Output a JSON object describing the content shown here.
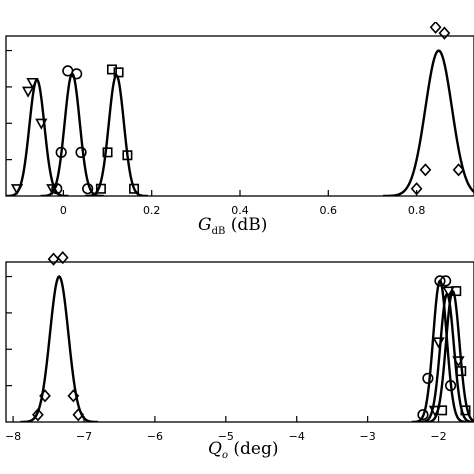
{
  "chart_data": [
    {
      "type": "line",
      "xlabel_main": "G",
      "xlabel_sub": "dB",
      "xlabel_unit": " (dB)",
      "xlim": [
        -0.13,
        0.93
      ],
      "ylim": [
        0,
        1.1
      ],
      "xticks": [
        {
          "value": 0,
          "label": "0"
        },
        {
          "value": 0.2,
          "label": "0.2"
        },
        {
          "value": 0.4,
          "label": "0.4"
        },
        {
          "value": 0.6,
          "label": "0.6"
        },
        {
          "value": 0.8,
          "label": "0.8"
        }
      ],
      "yticks": [
        0.25,
        0.5,
        0.75,
        1.0
      ],
      "series": [
        {
          "marker": "triangle-down",
          "mu": -0.06,
          "sigma": 0.017,
          "amp": 0.8,
          "points": [
            [
              -0.105,
              0.05
            ],
            [
              -0.07,
              0.78
            ],
            [
              -0.05,
              0.5
            ],
            [
              -0.025,
              0.05
            ],
            [
              -0.08,
              0.72
            ]
          ]
        },
        {
          "marker": "circle",
          "mu": 0.02,
          "sigma": 0.017,
          "amp": 0.84,
          "points": [
            [
              -0.015,
              0.05
            ],
            [
              0.01,
              0.86
            ],
            [
              0.03,
              0.84
            ],
            [
              -0.005,
              0.3
            ],
            [
              0.04,
              0.3
            ],
            [
              0.055,
              0.05
            ]
          ]
        },
        {
          "marker": "square",
          "mu": 0.12,
          "sigma": 0.017,
          "amp": 0.83,
          "points": [
            [
              0.085,
              0.05
            ],
            [
              0.11,
              0.87
            ],
            [
              0.125,
              0.85
            ],
            [
              0.1,
              0.3
            ],
            [
              0.145,
              0.28
            ],
            [
              0.16,
              0.05
            ]
          ]
        },
        {
          "marker": "diamond",
          "mu": 0.85,
          "sigma": 0.03,
          "amp": 1.0,
          "points": [
            [
              0.8,
              0.05
            ],
            [
              0.843,
              1.16
            ],
            [
              0.863,
              1.12
            ],
            [
              0.82,
              0.18
            ],
            [
              0.895,
              0.18
            ]
          ]
        }
      ]
    },
    {
      "type": "line",
      "xlabel_main": "Q",
      "xlabel_sub": "o",
      "xlabel_unit": " (deg)",
      "xlim": [
        -8.1,
        -1.5
      ],
      "ylim": [
        0,
        1.1
      ],
      "xticks": [
        {
          "value": -8,
          "label": "−8"
        },
        {
          "value": -7,
          "label": "−7"
        },
        {
          "value": -6,
          "label": "−6"
        },
        {
          "value": -5,
          "label": "−5"
        },
        {
          "value": -4,
          "label": "−4"
        },
        {
          "value": -3,
          "label": "−3"
        },
        {
          "value": -2,
          "label": "−2"
        }
      ],
      "yticks": [
        0.25,
        0.5,
        0.75,
        1.0
      ],
      "series": [
        {
          "marker": "diamond",
          "mu": -7.35,
          "sigma": 0.13,
          "amp": 1.0,
          "points": [
            [
              -7.65,
              0.05
            ],
            [
              -7.43,
              1.12
            ],
            [
              -7.3,
              1.13
            ],
            [
              -7.55,
              0.18
            ],
            [
              -7.15,
              0.18
            ],
            [
              -7.08,
              0.05
            ]
          ]
        },
        {
          "marker": "circle",
          "mu": -1.98,
          "sigma": 0.095,
          "amp": 0.97,
          "points": [
            [
              -2.15,
              0.3
            ],
            [
              -1.98,
              0.97
            ],
            [
              -1.9,
              0.97
            ],
            [
              -2.22,
              0.05
            ],
            [
              -1.83,
              0.25
            ]
          ]
        },
        {
          "marker": "triangle-down",
          "mu": -1.88,
          "sigma": 0.095,
          "amp": 0.88,
          "points": [
            [
              -2.05,
              0.08
            ],
            [
              -1.86,
              0.9
            ],
            [
              -1.72,
              0.42
            ],
            [
              -2.0,
              0.55
            ]
          ]
        },
        {
          "marker": "square",
          "mu": -1.8,
          "sigma": 0.095,
          "amp": 0.9,
          "points": [
            [
              -1.95,
              0.08
            ],
            [
              -1.75,
              0.9
            ],
            [
              -1.68,
              0.35
            ],
            [
              -1.62,
              0.08
            ]
          ]
        }
      ]
    }
  ]
}
